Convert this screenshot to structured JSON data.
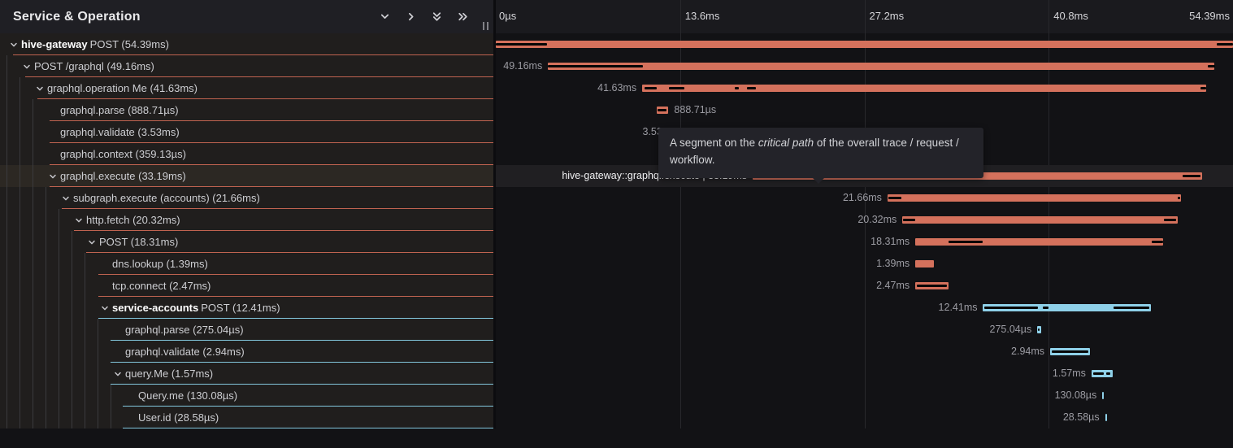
{
  "header": {
    "title": "Service & Operation",
    "icons": [
      {
        "name": "chevron-down-icon"
      },
      {
        "name": "chevron-right-icon"
      },
      {
        "name": "double-chevron-down-icon"
      },
      {
        "name": "double-chevron-right-icon"
      }
    ]
  },
  "colors": {
    "salmon": "#d4715c",
    "blue": "#8ed0e8",
    "salmon_border": "#c06350",
    "blue_border": "#83c7dd",
    "critical": "#060606"
  },
  "timeline": {
    "total_ms": 54.39,
    "ticks": [
      "0µs",
      "13.6ms",
      "27.2ms",
      "40.8ms",
      "54.39ms"
    ]
  },
  "tooltip": {
    "text_before": "A segment on the ",
    "text_italic": "critical path",
    "text_after": " of the overall trace / request / workflow."
  },
  "spans": [
    {
      "service": "hive-gateway",
      "name": "POST (54.39ms)",
      "level": 0,
      "expandable": true,
      "color": "salmon",
      "start_ms": 0,
      "duration_ms": 54.39,
      "bar_label": null,
      "label_side": null,
      "critical": [
        [
          0,
          3.78
        ],
        [
          53.18,
          1.21
        ]
      ],
      "hovered": false
    },
    {
      "name": "POST /graphql (49.16ms)",
      "level": 1,
      "expandable": true,
      "color": "salmon",
      "start_ms": 3.85,
      "duration_ms": 49.16,
      "bar_label": "49.16ms",
      "label_side": "left",
      "critical": [
        [
          3.85,
          7.0
        ],
        [
          52.55,
          0.55
        ]
      ],
      "hovered": false
    },
    {
      "name": "graphql.operation Me (41.63ms)",
      "level": 2,
      "expandable": true,
      "color": "salmon",
      "start_ms": 10.8,
      "duration_ms": 41.63,
      "bar_label": "41.63ms",
      "label_side": "left",
      "critical": [
        [
          10.95,
          0.9
        ],
        [
          12.8,
          1.1
        ],
        [
          17.65,
          0.3
        ],
        [
          18.55,
          0.65
        ],
        [
          52.0,
          0.43
        ]
      ],
      "hovered": false
    },
    {
      "name": "graphql.parse (888.71µs)",
      "level": 3,
      "expandable": false,
      "color": "salmon",
      "start_ms": 11.85,
      "duration_ms": 0.889,
      "bar_label": "888.71µs",
      "label_side": "right",
      "critical": [
        [
          11.95,
          0.65
        ]
      ],
      "hovered": false
    },
    {
      "name": "graphql.validate (3.53ms)",
      "level": 3,
      "expandable": false,
      "color": "salmon",
      "start_ms": 13.7,
      "duration_ms": 3.53,
      "bar_label": "3.53ms",
      "label_side": "left",
      "critical": [
        [
          13.85,
          3.2
        ]
      ],
      "hovered": false
    },
    {
      "name": "graphql.context (359.13µs)",
      "level": 3,
      "expandable": false,
      "color": "salmon",
      "start_ms": 17.3,
      "duration_ms": 0.359,
      "bar_label": "359.13µs",
      "label_side": "left",
      "critical": [],
      "hovered": false
    },
    {
      "name": "graphql.execute (33.19ms)",
      "level": 3,
      "expandable": true,
      "color": "salmon",
      "start_ms": 18.95,
      "duration_ms": 33.19,
      "bar_label": "hive-gateway::graphql.execute | 33.19ms",
      "label_side": "left",
      "critical": [
        [
          19.05,
          9.85
        ],
        [
          50.65,
          1.35
        ]
      ],
      "hovered": true
    },
    {
      "name": "subgraph.execute (accounts) (21.66ms)",
      "level": 4,
      "expandable": true,
      "color": "salmon",
      "start_ms": 28.9,
      "duration_ms": 21.66,
      "bar_label": "21.66ms",
      "label_side": "left",
      "critical": [
        [
          28.98,
          0.95
        ],
        [
          50.3,
          0.22
        ]
      ],
      "hovered": false
    },
    {
      "name": "http.fetch (20.32ms)",
      "level": 5,
      "expandable": true,
      "color": "salmon",
      "start_ms": 30.0,
      "duration_ms": 20.32,
      "bar_label": "20.32ms",
      "label_side": "left",
      "critical": [
        [
          30.07,
          0.9
        ],
        [
          49.3,
          0.9
        ]
      ],
      "hovered": false
    },
    {
      "name": "POST (18.31ms)",
      "level": 6,
      "expandable": true,
      "color": "salmon",
      "start_ms": 30.95,
      "duration_ms": 18.31,
      "bar_label": "18.31ms",
      "label_side": "left",
      "critical": [
        [
          33.4,
          2.5
        ],
        [
          48.4,
          0.85
        ]
      ],
      "hovered": false
    },
    {
      "name": "dns.lookup (1.39ms)",
      "level": 7,
      "expandable": false,
      "color": "salmon",
      "start_ms": 30.95,
      "duration_ms": 1.39,
      "bar_label": "1.39ms",
      "label_side": "left",
      "critical": [],
      "hovered": false
    },
    {
      "name": "tcp.connect (2.47ms)",
      "level": 7,
      "expandable": false,
      "color": "salmon",
      "start_ms": 30.95,
      "duration_ms": 2.47,
      "bar_label": "2.47ms",
      "label_side": "left",
      "critical": [
        [
          31.05,
          2.25
        ]
      ],
      "hovered": false
    },
    {
      "service": "service-accounts",
      "name": "POST (12.41ms)",
      "level": 7,
      "expandable": true,
      "color": "blue",
      "start_ms": 35.95,
      "duration_ms": 12.41,
      "bar_label": "12.41ms",
      "label_side": "left",
      "critical": [
        [
          36.05,
          3.95
        ],
        [
          40.35,
          0.4
        ],
        [
          45.55,
          2.65
        ]
      ],
      "hovered": false
    },
    {
      "name": "graphql.parse (275.04µs)",
      "level": 8,
      "expandable": false,
      "color": "blue",
      "start_ms": 39.95,
      "duration_ms": 0.275,
      "bar_label": "275.04µs",
      "label_side": "left",
      "critical": [
        [
          39.99,
          0.15
        ]
      ],
      "hovered": false
    },
    {
      "name": "graphql.validate (2.94ms)",
      "level": 8,
      "expandable": false,
      "color": "blue",
      "start_ms": 40.9,
      "duration_ms": 2.94,
      "bar_label": "2.94ms",
      "label_side": "left",
      "critical": [
        [
          41.0,
          2.7
        ]
      ],
      "hovered": false
    },
    {
      "name": "query.Me (1.57ms)",
      "level": 8,
      "expandable": true,
      "color": "blue",
      "start_ms": 43.95,
      "duration_ms": 1.57,
      "bar_label": "1.57ms",
      "label_side": "left",
      "critical": [
        [
          44.05,
          0.8
        ],
        [
          45.05,
          0.28
        ]
      ],
      "hovered": false
    },
    {
      "name": "Query.me (130.08µs)",
      "level": 9,
      "expandable": false,
      "color": "blue",
      "start_ms": 44.75,
      "duration_ms": 0.13008,
      "bar_label": "130.08µs",
      "label_side": "left",
      "critical": [],
      "hovered": false
    },
    {
      "name": "User.id (28.58µs)",
      "level": 9,
      "expandable": false,
      "color": "blue",
      "start_ms": 44.95,
      "duration_ms": 0.02858,
      "bar_label": "28.58µs",
      "label_side": "left",
      "critical": [],
      "hovered": false
    }
  ]
}
